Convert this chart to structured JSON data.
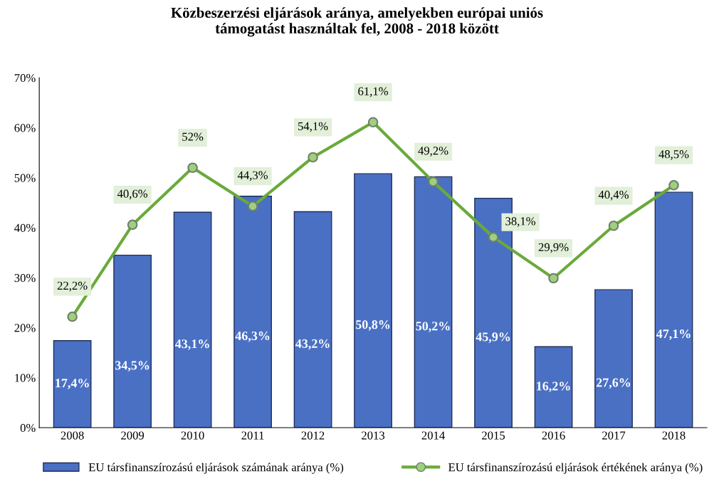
{
  "chart_data": {
    "type": "bar",
    "title": "Közbeszerzési eljárások aránya, amelyekben európai uniós\ntámogatást használtak fel, 2008 - 2018 között",
    "categories": [
      "2008",
      "2009",
      "2010",
      "2011",
      "2012",
      "2013",
      "2014",
      "2015",
      "2016",
      "2017",
      "2018"
    ],
    "series": [
      {
        "name": "EU társfinanszírozású eljárások számának aránya (%)",
        "color": "#4a70c4",
        "values": [
          17.4,
          34.5,
          43.1,
          46.3,
          43.2,
          50.8,
          50.2,
          45.9,
          16.2,
          27.6,
          47.1
        ],
        "value_labels": [
          "17,4%",
          "34,5%",
          "43,1%",
          "46,3%",
          "43,2%",
          "50,8%",
          "50,2%",
          "45,9%",
          "16,2%",
          "27,6%",
          "47,1%"
        ]
      },
      {
        "name": "EU társfinanszírozású eljárások értékének aránya (%)",
        "type": "line",
        "color": "#6aaa3a",
        "marker": "circle",
        "values": [
          22.2,
          40.6,
          52,
          44.3,
          54.1,
          61.1,
          49.2,
          38.1,
          29.9,
          40.4,
          48.5
        ],
        "value_labels": [
          "22,2%",
          "40,6%",
          "52%",
          "44,3%",
          "54,1%",
          "61,1%",
          "49,2%",
          "38,1%",
          "29,9%",
          "40,4%",
          "48,5%"
        ]
      }
    ],
    "ylim": [
      0,
      70
    ],
    "yticks": [
      {
        "value": 0,
        "label": "0%"
      },
      {
        "value": 10,
        "label": "10%"
      },
      {
        "value": 20,
        "label": "20%"
      },
      {
        "value": 30,
        "label": "30%"
      },
      {
        "value": 40,
        "label": "40%"
      },
      {
        "value": 50,
        "label": "50%"
      },
      {
        "value": 60,
        "label": "60%"
      },
      {
        "value": 70,
        "label": "70%"
      }
    ],
    "grid": false,
    "legend": "bottom"
  }
}
